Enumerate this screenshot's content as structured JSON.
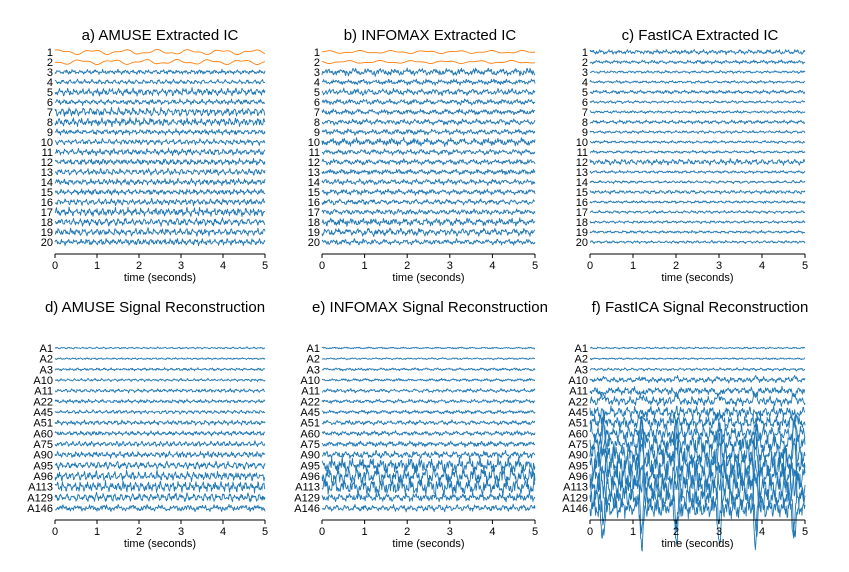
{
  "chart_data": [
    {
      "type": "line",
      "panel": "a",
      "title": "a) AMUSE Extracted IC",
      "xlabel": "time (seconds)",
      "xlim": [
        0,
        5
      ],
      "xticks": [
        "0",
        "1",
        "2",
        "3",
        "4",
        "5"
      ],
      "channels": [
        "1",
        "2",
        "3",
        "4",
        "5",
        "6",
        "7",
        "8",
        "9",
        "10",
        "11",
        "12",
        "13",
        "14",
        "15",
        "16",
        "17",
        "18",
        "19",
        "20"
      ],
      "highlight_channels": [
        "1",
        "2"
      ],
      "activity": [
        0.5,
        0.5,
        0.5,
        0.5,
        0.8,
        0.6,
        0.9,
        0.9,
        0.6,
        0.6,
        0.7,
        0.7,
        0.7,
        0.7,
        0.6,
        0.7,
        0.9,
        0.8,
        0.8,
        0.7
      ]
    },
    {
      "type": "line",
      "panel": "b",
      "title": "b) INFOMAX Extracted IC",
      "xlabel": "time (seconds)",
      "xlim": [
        0,
        5
      ],
      "xticks": [
        "0",
        "1",
        "2",
        "3",
        "4",
        "5"
      ],
      "channels": [
        "1",
        "2",
        "3",
        "4",
        "5",
        "6",
        "7",
        "8",
        "9",
        "10",
        "11",
        "12",
        "13",
        "14",
        "15",
        "16",
        "17",
        "18",
        "19",
        "20"
      ],
      "highlight_channels": [
        "1",
        "2"
      ],
      "activity": [
        0.3,
        0.3,
        0.8,
        0.6,
        0.7,
        0.6,
        0.6,
        0.6,
        0.6,
        0.8,
        0.6,
        0.6,
        0.6,
        0.6,
        0.6,
        0.6,
        0.6,
        0.8,
        0.8,
        0.6
      ]
    },
    {
      "type": "line",
      "panel": "c",
      "title": "c) FastICA Extracted IC",
      "xlabel": "time (seconds)",
      "xlim": [
        0,
        5
      ],
      "xticks": [
        "0",
        "1",
        "2",
        "3",
        "4",
        "5"
      ],
      "channels": [
        "1",
        "2",
        "3",
        "4",
        "5",
        "6",
        "7",
        "8",
        "9",
        "10",
        "11",
        "12",
        "13",
        "14",
        "15",
        "16",
        "17",
        "18",
        "19",
        "20"
      ],
      "highlight_channels": [],
      "activity": [
        0.5,
        0.4,
        0.3,
        0.3,
        0.4,
        0.3,
        0.3,
        0.4,
        0.3,
        0.3,
        0.3,
        0.6,
        0.3,
        0.3,
        0.4,
        0.3,
        0.3,
        0.3,
        0.3,
        0.3
      ]
    },
    {
      "type": "line",
      "panel": "d",
      "title": "d) AMUSE Signal Reconstruction",
      "xlabel": "time (seconds)",
      "xlim": [
        0,
        5
      ],
      "xticks": [
        "0",
        "1",
        "2",
        "3",
        "4",
        "5"
      ],
      "channels": [
        "A1",
        "A2",
        "A3",
        "A10",
        "A11",
        "A22",
        "A45",
        "A51",
        "A60",
        "A75",
        "A90",
        "A95",
        "A96",
        "A113",
        "A129",
        "A146"
      ],
      "activity": [
        0.2,
        0.2,
        0.3,
        0.3,
        0.4,
        0.4,
        0.4,
        0.5,
        0.5,
        0.6,
        0.7,
        0.8,
        1.0,
        1.1,
        0.9,
        0.7
      ]
    },
    {
      "type": "line",
      "panel": "e",
      "title": "e) INFOMAX Signal Reconstruction",
      "xlabel": "time (seconds)",
      "xlim": [
        0,
        5
      ],
      "xticks": [
        "0",
        "1",
        "2",
        "3",
        "4",
        "5"
      ],
      "channels": [
        "A1",
        "A2",
        "A3",
        "A10",
        "A11",
        "A22",
        "A45",
        "A51",
        "A60",
        "A75",
        "A90",
        "A95",
        "A96",
        "A113",
        "A129",
        "A146"
      ],
      "activity": [
        0.2,
        0.2,
        0.3,
        0.3,
        0.4,
        0.4,
        0.4,
        0.5,
        0.5,
        0.6,
        0.8,
        1.6,
        2.0,
        1.8,
        0.9,
        0.7
      ]
    },
    {
      "type": "line",
      "panel": "f",
      "title": "f) FastICA Signal Reconstruction",
      "xlabel": "time (seconds)",
      "xlim": [
        0,
        5
      ],
      "xticks": [
        "0",
        "1",
        "2",
        "3",
        "4",
        "5"
      ],
      "channels": [
        "A1",
        "A2",
        "A3",
        "A10",
        "A11",
        "A22",
        "A45",
        "A51",
        "A60",
        "A75",
        "A90",
        "A95",
        "A96",
        "A113",
        "A129",
        "A146"
      ],
      "activity": [
        0.2,
        0.2,
        0.3,
        0.6,
        0.8,
        1.0,
        1.2,
        1.4,
        1.6,
        2.0,
        2.6,
        3.0,
        3.2,
        3.0,
        2.6,
        2.2
      ],
      "spike_times": [
        0.3,
        1.2,
        2.0,
        3.0,
        3.85,
        4.75
      ]
    }
  ],
  "colors": {
    "trace": "#1f77b4",
    "highlight": "#ff7f0e",
    "text": "#000000",
    "axis": "#000000"
  }
}
